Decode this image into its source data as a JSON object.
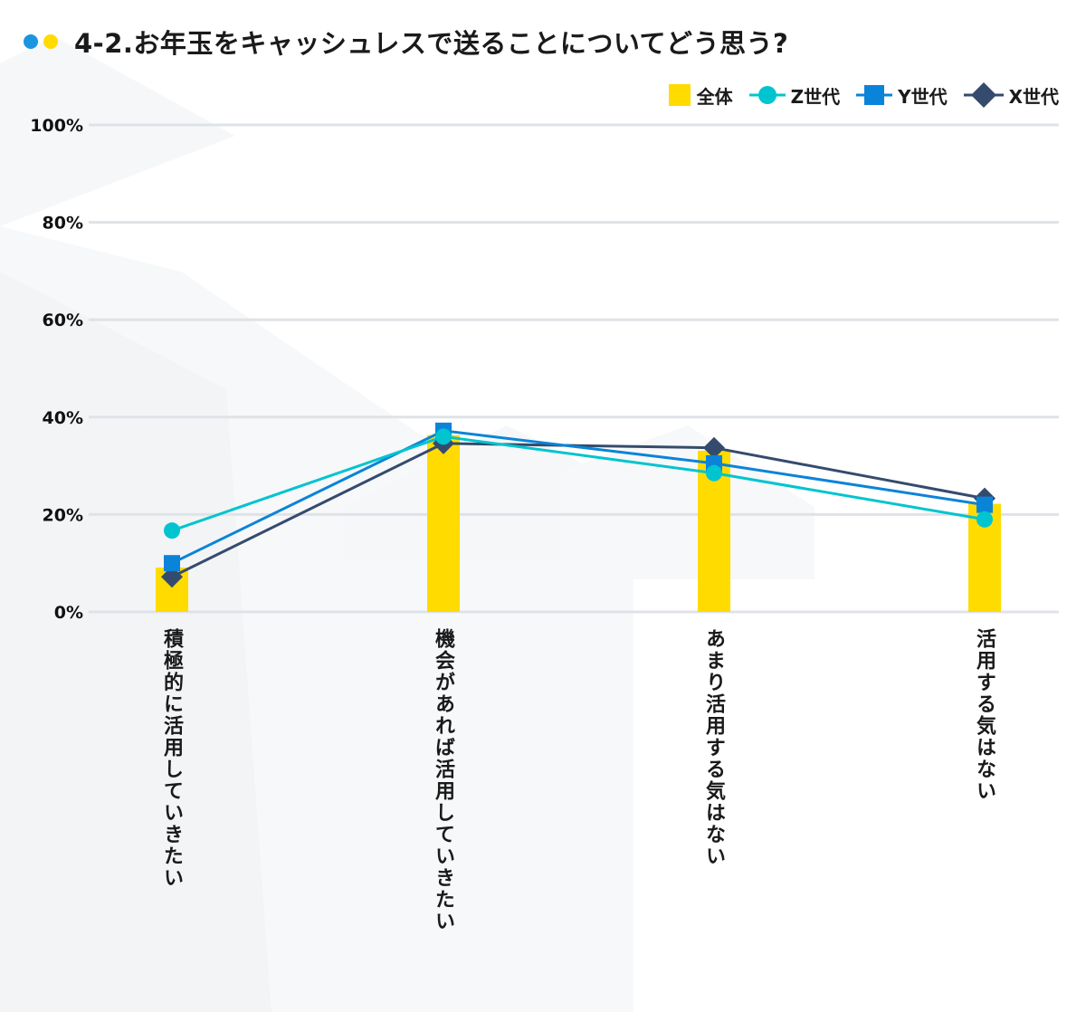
{
  "header": {
    "title": "4-2.お年玉をキャッシュレスで送ることについてどう思う?",
    "dot_colors": [
      "#1a96e0",
      "#ffdb00"
    ]
  },
  "colors": {
    "bar": "#ffdb00",
    "z": "#00c4cf",
    "y": "#0a84d8",
    "x": "#354b6e",
    "grid": "#dfe3e8"
  },
  "chart_data": {
    "type": "bar",
    "title": "4-2.お年玉をキャッシュレスで送ることについてどう思う?",
    "xlabel": "",
    "ylabel": "",
    "ylim": [
      0,
      100
    ],
    "yticks": [
      "0%",
      "20%",
      "40%",
      "60%",
      "80%",
      "100%"
    ],
    "ytick_values": [
      0,
      20,
      40,
      60,
      80,
      100
    ],
    "grid": true,
    "legend_position": "top-right",
    "categories": [
      "積極的に活用していきたい",
      "機会があれば活用していきたい",
      "あまり活用する気はない",
      "活用する気はない"
    ],
    "series": [
      {
        "name": "全体",
        "type": "bar",
        "marker": "square",
        "values": [
          9.1,
          36.3,
          33.1,
          22.2
        ]
      },
      {
        "name": "Z世代",
        "type": "line",
        "marker": "circle",
        "values": [
          16.7,
          36.0,
          28.5,
          19.0
        ]
      },
      {
        "name": "Y世代",
        "type": "line",
        "marker": "square",
        "values": [
          10.0,
          37.2,
          30.5,
          22.0
        ]
      },
      {
        "name": "X世代",
        "type": "line",
        "marker": "diamond",
        "values": [
          7.2,
          34.6,
          33.7,
          23.3
        ]
      }
    ]
  }
}
